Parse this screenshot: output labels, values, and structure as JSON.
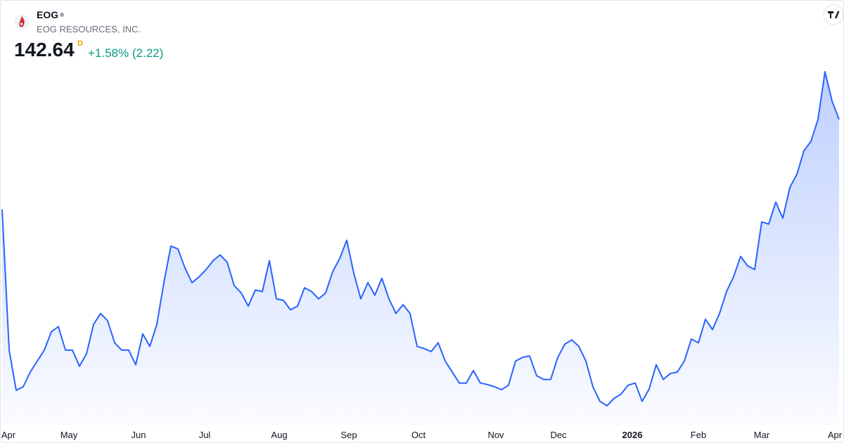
{
  "header": {
    "symbol": "EOG",
    "name": "EOG RESOURCES, INC.",
    "price": "142.64",
    "interval": "D",
    "change": "+1.58% (2.22)"
  },
  "chart_data": {
    "type": "area",
    "color": "#2962ff",
    "values": [
      130.22,
      110.82,
      105.27,
      105.77,
      107.79,
      109.31,
      110.82,
      113.35,
      114.06,
      110.82,
      110.82,
      108.6,
      110.32,
      114.36,
      115.87,
      114.86,
      111.83,
      110.82,
      110.82,
      108.8,
      113.05,
      111.33,
      114.36,
      120.12,
      125.17,
      124.76,
      122.14,
      120.12,
      120.92,
      121.93,
      123.15,
      123.95,
      122.94,
      119.71,
      118.7,
      116.88,
      119.11,
      118.9,
      123.15,
      117.89,
      117.69,
      116.38,
      116.88,
      119.41,
      118.9,
      117.89,
      118.7,
      121.63,
      123.45,
      125.97,
      121.43,
      117.89,
      120.12,
      118.4,
      120.72,
      117.89,
      115.87,
      117.09,
      115.87,
      111.33,
      111.03,
      110.62,
      111.83,
      109.31,
      107.79,
      106.28,
      106.28,
      108.0,
      106.28,
      106.08,
      105.77,
      105.37,
      105.98,
      109.31,
      109.81,
      110.02,
      107.29,
      106.78,
      106.78,
      109.81,
      111.63,
      112.24,
      111.33,
      109.31,
      105.77,
      103.75,
      103.15,
      104.16,
      104.76,
      105.98,
      106.28,
      103.75,
      105.47,
      108.8,
      106.78,
      107.59,
      107.79,
      109.31,
      112.34,
      111.83,
      115.07,
      113.65,
      115.87,
      118.9,
      120.92,
      123.75,
      122.44,
      121.93,
      128.5,
      128.2,
      131.23,
      129.0,
      133.25,
      135.06,
      138.3,
      139.61,
      142.64,
      149.21,
      145.17,
      142.64
    ],
    "x_labels": [
      "Apr",
      "May",
      "Jun",
      "Jul",
      "Aug",
      "Sep",
      "Oct",
      "Nov",
      "Dec",
      "2026",
      "Feb",
      "Mar",
      "Apr"
    ]
  }
}
